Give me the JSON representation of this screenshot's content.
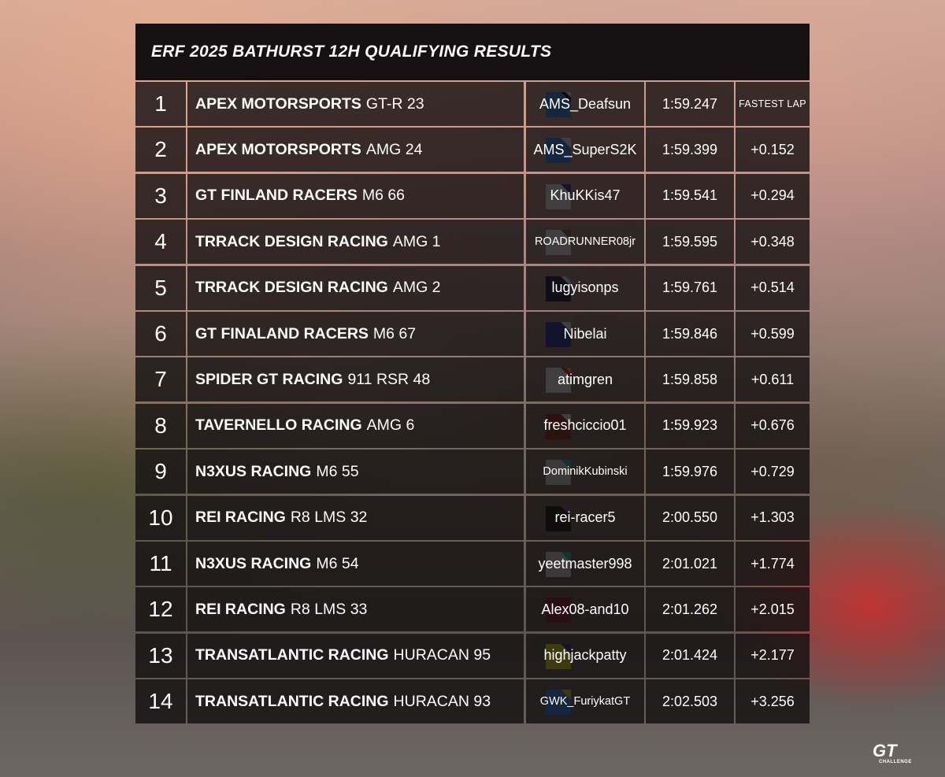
{
  "header": {
    "title": "ERF 2025 BATHURST 12H QUALIFYING RESULTS"
  },
  "results": [
    {
      "pos": "1",
      "team": "APEX MOTORSPORTS",
      "model": "GT-R 23",
      "driver": "AMS_Deafsun",
      "time": "1:59.247",
      "gap": "FASTEST LAP",
      "color": "#1e8bff",
      "corner": "#000000",
      "corner2": "#ffffff"
    },
    {
      "pos": "2",
      "team": "APEX MOTORSPORTS",
      "model": "AMG 24",
      "driver": "AMS_SuperS2K",
      "time": "1:59.399",
      "gap": "+0.152",
      "color": "#1e8bff",
      "corner": "#ffffff",
      "corner2": "#ffffff"
    },
    {
      "pos": "3",
      "team": "GT FINLAND RACERS",
      "model": "M6 66",
      "driver": "KhuKKis47",
      "time": "1:59.541",
      "gap": "+0.294",
      "color": "#ffffff",
      "corner": "#1a2f8c",
      "corner2": "#1a2f8c"
    },
    {
      "pos": "4",
      "team": "TRRACK DESIGN RACING",
      "model": "AMG 1",
      "driver": "ROADRUNNER08jr",
      "time": "1:59.595",
      "gap": "+0.348",
      "color": "#ffffff",
      "corner": "#1a8a3a",
      "corner2": "#e03030"
    },
    {
      "pos": "5",
      "team": "TRRACK DESIGN RACING",
      "model": "AMG 2",
      "driver": "lugyisonps",
      "time": "1:59.761",
      "gap": "+0.514",
      "color": "#0c0c3a",
      "corner": "#ffffff",
      "corner2": "#20c0d8"
    },
    {
      "pos": "6",
      "team": "GT FINALAND RACERS",
      "model": "M6 67",
      "driver": "Nibelai",
      "time": "1:59.846",
      "gap": "+0.599",
      "color": "#13329a",
      "corner": "#ffffff",
      "corner2": "#ffffff"
    },
    {
      "pos": "7",
      "team": "SPIDER GT RACING",
      "model": "911 RSR 48",
      "driver": "atimgren",
      "time": "1:59.858",
      "gap": "+0.611",
      "color": "#ffffff",
      "corner": "#e02020",
      "corner2": "#f0c000"
    },
    {
      "pos": "8",
      "team": "TAVERNELLO RACING",
      "model": "AMG 6",
      "driver": "freshciccio01",
      "time": "1:59.923",
      "gap": "+0.676",
      "color": "#8a2b12",
      "corner": "#ffffff",
      "corner2": "#ffffff"
    },
    {
      "pos": "9",
      "team": "N3XUS RACING",
      "model": "M6 55",
      "driver": "DominikKubinski",
      "time": "1:59.976",
      "gap": "+0.729",
      "color": "#e6e6e6",
      "corner": "#18c8c8",
      "corner2": "#18c8c8"
    },
    {
      "pos": "10",
      "team": "REI RACING",
      "model": "R8 LMS 32",
      "driver": "rei-racer5",
      "time": "2:00.550",
      "gap": "+1.303",
      "color": "#050505",
      "corner": "#9a3aa8",
      "corner2": "#9a3aa8"
    },
    {
      "pos": "11",
      "team": "N3XUS RACING",
      "model": "M6 54",
      "driver": "yeetmaster998",
      "time": "2:01.021",
      "gap": "+1.774",
      "color": "#e6e6e6",
      "corner": "#18c8c8",
      "corner2": "#18c8c8"
    },
    {
      "pos": "12",
      "team": "REI RACING",
      "model": "R8 LMS 33",
      "driver": "Alex08-and10",
      "time": "2:01.262",
      "gap": "+2.015",
      "color": "#8a1035",
      "corner": "#8a1035",
      "corner2": "#8a1035"
    },
    {
      "pos": "13",
      "team": "TRANSATLANTIC RACING",
      "model": "HURACAN 95",
      "driver": "highjackpatty",
      "time": "2:01.424",
      "gap": "+2.177",
      "color": "#f5e800",
      "corner": "#1a2f8c",
      "corner2": "#1a2f8c"
    },
    {
      "pos": "14",
      "team": "TRANSATLANTIC RACING",
      "model": "HURACAN 93",
      "driver": "GWK_FuriykatGT",
      "time": "2:02.503",
      "gap": "+3.256",
      "color": "#1e8bff",
      "corner": "#f5e800",
      "corner2": "#f5e800"
    }
  ],
  "logo": {
    "icon": "gt-challenge-logo",
    "text": "GT",
    "subtext": "CHALLENGE"
  }
}
